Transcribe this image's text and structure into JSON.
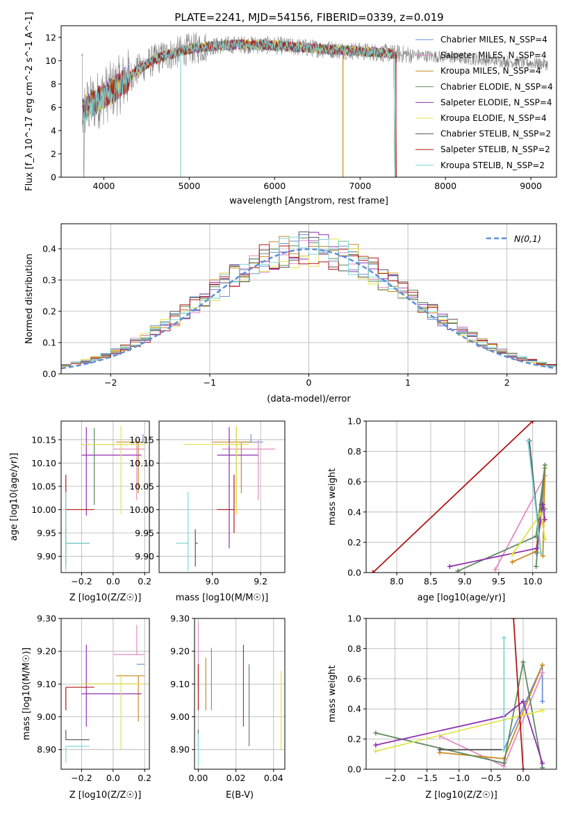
{
  "title": "PLATE=2241, MJD=54156, FIBERID=0339, z=0.019",
  "model_colors": [
    "#6a8fd8",
    "#e48bc2",
    "#c98a1e",
    "#5e8a5e",
    "#8f2fb0",
    "#e2e24a",
    "#555555",
    "#b01515",
    "#7fd6d6"
  ],
  "chart_data": [
    {
      "id": "spectrum",
      "type": "line",
      "xlabel": "wavelength [Angstrom, rest frame]",
      "ylabel": "Flux [f_λ 10^-17 erg cm^-2 s^-1 A^-1]",
      "xlim": [
        3500,
        9300
      ],
      "ylim": [
        0,
        13
      ],
      "xticks": [
        4000,
        5000,
        6000,
        7000,
        8000,
        9000
      ],
      "yticks": [
        0,
        2,
        4,
        6,
        8,
        10,
        12
      ],
      "grid": false,
      "legend_position": "top-right",
      "series": [
        {
          "name": "Chabrier MILES, N_SSP=4",
          "color": "#6a8fd8"
        },
        {
          "name": "Salpeter MILES, N_SSP=4",
          "color": "#e48bc2"
        },
        {
          "name": "Kroupa MILES, N_SSP=4",
          "color": "#c98a1e"
        },
        {
          "name": "Chabrier ELODIE, N_SSP=4",
          "color": "#5e8a5e"
        },
        {
          "name": "Salpeter ELODIE, N_SSP=4",
          "color": "#8f2fb0"
        },
        {
          "name": "Kroupa ELODIE, N_SSP=4",
          "color": "#e2e24a"
        },
        {
          "name": "Chabrier STELIB, N_SSP=2",
          "color": "#555555"
        },
        {
          "name": "Salpeter STELIB, N_SSP=2",
          "color": "#b01515"
        },
        {
          "name": "Kroupa STELIB, N_SSP=2",
          "color": "#7fd6d6"
        }
      ],
      "data_trend": {
        "x": [
          3750,
          3800,
          3900,
          4000,
          4100,
          4200,
          4300,
          4400,
          4500,
          4600,
          4700,
          4800,
          4900,
          5000,
          5100,
          5200,
          5400,
          5600,
          5800,
          6000,
          6200,
          6400,
          6600,
          6800,
          7000,
          7200,
          7400,
          7600,
          7800,
          8000,
          8200,
          8400,
          8600,
          8800,
          9000,
          9200
        ],
        "y": [
          5.5,
          6.0,
          6.5,
          7.0,
          7.5,
          8.0,
          8.6,
          9.2,
          9.7,
          10.1,
          10.4,
          10.6,
          10.8,
          11.0,
          11.1,
          11.2,
          11.3,
          11.4,
          11.35,
          11.3,
          11.2,
          11.1,
          11.0,
          10.9,
          10.8,
          10.7,
          10.6,
          10.5,
          10.4,
          10.3,
          10.2,
          10.1,
          10.0,
          9.9,
          9.8,
          9.7
        ]
      },
      "model_end_wavelengths": [
        7400,
        7400,
        7400,
        7400,
        7400,
        7400,
        7400,
        7420,
        7400
      ],
      "model_start_wavelengths": [
        3750,
        3750,
        3750,
        3750,
        3750,
        3750,
        3750,
        3750,
        3750
      ]
    },
    {
      "id": "residuals",
      "type": "histogram",
      "xlabel": "(data-model)/error",
      "ylabel": "Normed distribution",
      "xlim": [
        -2.5,
        2.5
      ],
      "ylim": [
        0,
        0.48
      ],
      "xticks": [
        -2,
        -1,
        0,
        1,
        2
      ],
      "yticks": [
        0.0,
        0.1,
        0.2,
        0.3,
        0.4
      ],
      "grid": true,
      "legend_position": "top-right",
      "reference_curve": {
        "name": "N(0,1)",
        "color": "#5b8fd9",
        "style": "dashed"
      },
      "bin_width": 0.1,
      "bin_start": -2.5
    },
    {
      "id": "age_vs_Z",
      "type": "errorbar",
      "xlabel": "Z [log10(Z/Z☉)]",
      "ylabel": "age [log10(age/yr)]",
      "xlim": [
        -0.33,
        0.23
      ],
      "ylim": [
        9.865,
        10.19
      ],
      "xticks": [
        -0.2,
        0.0,
        0.2
      ],
      "yticks": [
        9.9,
        9.95,
        10.0,
        10.05,
        10.1,
        10.15
      ],
      "grid": true,
      "points": [
        {
          "x": 0.19,
          "y": 10.145,
          "xerr": [
            0.04,
            0.01
          ],
          "yerr": [
            0.0,
            0.017
          ],
          "color": "#6a8fd8"
        },
        {
          "x": 0.15,
          "y": 10.13,
          "xerr": [
            0.15,
            0.05
          ],
          "yerr": [
            0.11,
            0.02
          ],
          "color": "#e48bc2"
        },
        {
          "x": 0.16,
          "y": 10.145,
          "xerr": [
            0.14,
            0.04
          ],
          "yerr": [
            0.11,
            0.0
          ],
          "color": "#c98a1e"
        },
        {
          "x": -0.12,
          "y": 10.14,
          "xerr": [
            0.08,
            0.27
          ],
          "yerr": [
            0.13,
            0.035
          ],
          "color": "#5e8a5e"
        },
        {
          "x": -0.17,
          "y": 10.117,
          "xerr": [
            0.03,
            0.35
          ],
          "yerr": [
            0.13,
            0.06
          ],
          "color": "#8f2fb0"
        },
        {
          "x": 0.05,
          "y": 10.14,
          "xerr": [
            0.25,
            0.15
          ],
          "yerr": [
            0.15,
            0.04
          ],
          "color": "#e2e24a"
        },
        {
          "x": -0.3,
          "y": 9.928,
          "xerr": [
            0.0,
            0.15
          ],
          "yerr": [
            0.05,
            0.03
          ],
          "color": "#555555"
        },
        {
          "x": -0.3,
          "y": 10.0,
          "xerr": [
            0.0,
            0.18
          ],
          "yerr": [
            0.05,
            0.075
          ],
          "color": "#b01515"
        },
        {
          "x": -0.3,
          "y": 9.928,
          "xerr": [
            0.0,
            0.15
          ],
          "yerr": [
            0.06,
            0.11
          ],
          "color": "#7fd6d6"
        }
      ]
    },
    {
      "id": "age_vs_mass",
      "type": "errorbar",
      "xlabel": "mass [log10(M/M☉)]",
      "ylabel": "",
      "xlim": [
        8.78,
        9.3
      ],
      "ylim": [
        9.865,
        10.19
      ],
      "xticks": [
        9.0,
        9.2
      ],
      "yticks": [
        9.9,
        9.95,
        10.0,
        10.05,
        10.1,
        10.15
      ],
      "grid": true,
      "points": [
        {
          "x": 9.16,
          "y": 10.145,
          "xerr": [
            0.04,
            0.05
          ],
          "yerr": [
            0.0,
            0.017
          ],
          "color": "#6a8fd8"
        },
        {
          "x": 9.19,
          "y": 10.13,
          "xerr": [
            0.15,
            0.07
          ],
          "yerr": [
            0.11,
            0.02
          ],
          "color": "#e48bc2"
        },
        {
          "x": 9.12,
          "y": 10.145,
          "xerr": [
            0.12,
            0.04
          ],
          "yerr": [
            0.11,
            0.0
          ],
          "color": "#c98a1e"
        },
        {
          "x": 9.1,
          "y": 10.14,
          "xerr": [
            0.03,
            0.03
          ],
          "yerr": [
            0.13,
            0.035
          ],
          "color": "#5e8a5e"
        },
        {
          "x": 9.07,
          "y": 10.117,
          "xerr": [
            0.05,
            0.12
          ],
          "yerr": [
            0.2,
            0.06
          ],
          "color": "#8f2fb0"
        },
        {
          "x": 9.1,
          "y": 10.14,
          "xerr": [
            0.22,
            0.05
          ],
          "yerr": [
            0.15,
            0.04
          ],
          "color": "#e2e24a"
        },
        {
          "x": 8.93,
          "y": 9.928,
          "xerr": [
            0.0,
            0.01
          ],
          "yerr": [
            0.05,
            0.03
          ],
          "color": "#555555"
        },
        {
          "x": 9.09,
          "y": 10.0,
          "xerr": [
            0.07,
            0.0
          ],
          "yerr": [
            0.05,
            0.075
          ],
          "color": "#b01515"
        },
        {
          "x": 8.9,
          "y": 9.928,
          "xerr": [
            0.05,
            0.0
          ],
          "yerr": [
            0.06,
            0.11
          ],
          "color": "#7fd6d6"
        }
      ]
    },
    {
      "id": "weight_vs_age",
      "type": "line",
      "xlabel": "age [log10(age/yr)]",
      "ylabel": "mass weight",
      "xlim": [
        7.55,
        10.35
      ],
      "ylim": [
        0,
        1
      ],
      "xticks": [
        8.0,
        8.5,
        9.0,
        9.5,
        10.0
      ],
      "yticks": [
        0.0,
        0.2,
        0.4,
        0.6,
        0.8,
        1.0
      ],
      "grid": true,
      "series": [
        {
          "color": "#6a8fd8",
          "x": [
            10.05,
            10.12,
            10.18
          ],
          "y": [
            0.13,
            0.45,
            0.42
          ]
        },
        {
          "color": "#e48bc2",
          "x": [
            9.45,
            10.18,
            10.12
          ],
          "y": [
            0.02,
            0.64,
            0.33
          ]
        },
        {
          "color": "#c98a1e",
          "x": [
            9.7,
            10.05,
            10.18,
            10.15
          ],
          "y": [
            0.07,
            0.14,
            0.69,
            0.11
          ]
        },
        {
          "color": "#5e8a5e",
          "x": [
            8.9,
            10.05,
            10.18,
            10.05
          ],
          "y": [
            0.01,
            0.24,
            0.71,
            0.04
          ]
        },
        {
          "color": "#8f2fb0",
          "x": [
            8.78,
            10.06,
            10.15,
            10.18
          ],
          "y": [
            0.04,
            0.16,
            0.45,
            0.35
          ]
        },
        {
          "color": "#e2e24a",
          "x": [
            9.7,
            10.12,
            10.18,
            10.15
          ],
          "y": [
            0.12,
            0.39,
            0.22,
            0.31
          ]
        },
        {
          "color": "#555555",
          "x": [
            9.95,
            10.12
          ],
          "y": [
            0.87,
            0.13
          ]
        },
        {
          "color": "#b01515",
          "x": [
            7.65,
            10.0
          ],
          "y": [
            0.0,
            1.0
          ]
        },
        {
          "color": "#7fd6d6",
          "x": [
            9.93,
            10.12
          ],
          "y": [
            0.87,
            0.13
          ]
        }
      ]
    },
    {
      "id": "mass_vs_Z",
      "type": "errorbar",
      "xlabel": "Z [log10(Z/Z☉)]",
      "ylabel": "mass [log10(M/M☉)]",
      "xlim": [
        -0.33,
        0.23
      ],
      "ylim": [
        8.84,
        9.3
      ],
      "xticks": [
        -0.2,
        0.0,
        0.2
      ],
      "yticks": [
        8.9,
        9.0,
        9.1,
        9.2,
        9.3
      ],
      "grid": true,
      "points": [
        {
          "x": 0.19,
          "y": 9.16,
          "xerr": [
            0.04,
            0.01
          ],
          "yerr": [
            0.0,
            0.0
          ],
          "color": "#6a8fd8"
        },
        {
          "x": 0.15,
          "y": 9.19,
          "xerr": [
            0.15,
            0.05
          ],
          "yerr": [
            0.0,
            0.09
          ],
          "color": "#e48bc2"
        },
        {
          "x": 0.16,
          "y": 9.125,
          "xerr": [
            0.14,
            0.04
          ],
          "yerr": [
            0.14,
            0.0
          ],
          "color": "#c98a1e"
        },
        {
          "x": -0.12,
          "y": 9.1,
          "xerr": [
            0.08,
            0.27
          ],
          "yerr": [
            0.0,
            0.0
          ],
          "color": "#5e8a5e"
        },
        {
          "x": -0.17,
          "y": 9.07,
          "xerr": [
            0.03,
            0.35
          ],
          "yerr": [
            0.1,
            0.15
          ],
          "color": "#8f2fb0"
        },
        {
          "x": 0.05,
          "y": 9.1,
          "xerr": [
            0.25,
            0.15
          ],
          "yerr": [
            0.2,
            0.03
          ],
          "color": "#e2e24a"
        },
        {
          "x": -0.3,
          "y": 8.93,
          "xerr": [
            0.0,
            0.15
          ],
          "yerr": [
            0.0,
            0.03
          ],
          "color": "#555555"
        },
        {
          "x": -0.3,
          "y": 9.09,
          "xerr": [
            0.0,
            0.18
          ],
          "yerr": [
            0.07,
            0.0
          ],
          "color": "#b01515"
        },
        {
          "x": -0.3,
          "y": 8.91,
          "xerr": [
            0.0,
            0.15
          ],
          "yerr": [
            0.05,
            0.0
          ],
          "color": "#7fd6d6"
        }
      ]
    },
    {
      "id": "mass_vs_EBV",
      "type": "errorbar",
      "xlabel": "E(B-V)",
      "ylabel": "",
      "xlim": [
        -0.002,
        0.046
      ],
      "ylim": [
        8.84,
        9.3
      ],
      "xticks": [
        0.0,
        0.02,
        0.04
      ],
      "yticks": [
        8.9,
        9.0,
        9.1,
        9.2,
        9.3
      ],
      "grid": true,
      "points": [
        {
          "x": 0.007,
          "y": 9.11,
          "xerr": [
            0,
            0
          ],
          "yerr": [
            0.09,
            0.1
          ],
          "color": "#6a8fd8"
        },
        {
          "x": 0.0,
          "y": 9.19,
          "xerr": [
            0,
            0
          ],
          "yerr": [
            0.11,
            0.1
          ],
          "color": "#e48bc2"
        },
        {
          "x": 0.004,
          "y": 9.1,
          "xerr": [
            0,
            0
          ],
          "yerr": [
            0.08,
            0.08
          ],
          "color": "#c98a1e"
        },
        {
          "x": 0.027,
          "y": 9.03,
          "xerr": [
            0,
            0
          ],
          "yerr": [
            0.12,
            0.13
          ],
          "color": "#5e8a5e"
        },
        {
          "x": 0.024,
          "y": 9.09,
          "xerr": [
            0,
            0
          ],
          "yerr": [
            0.12,
            0.13
          ],
          "color": "#8f2fb0"
        },
        {
          "x": 0.044,
          "y": 9.02,
          "xerr": [
            0,
            0
          ],
          "yerr": [
            0.12,
            0.12
          ],
          "color": "#e2e24a"
        },
        {
          "x": 0.0,
          "y": 8.93,
          "xerr": [
            0,
            0
          ],
          "yerr": [
            0.03,
            0.03
          ],
          "color": "#555555"
        },
        {
          "x": 0.0,
          "y": 9.09,
          "xerr": [
            0,
            0
          ],
          "yerr": [
            0.07,
            0.07
          ],
          "color": "#b01515"
        },
        {
          "x": 0.0,
          "y": 8.9,
          "xerr": [
            0,
            0
          ],
          "yerr": [
            0.05,
            0.05
          ],
          "color": "#7fd6d6"
        }
      ]
    },
    {
      "id": "weight_vs_Z",
      "type": "line",
      "xlabel": "Z [log10(Z/Z☉)]",
      "ylabel": "mass weight",
      "xlim": [
        -2.45,
        0.52
      ],
      "ylim": [
        0,
        1
      ],
      "xticks": [
        -2.0,
        -1.5,
        -1.0,
        -0.5,
        0.0
      ],
      "yticks": [
        0.0,
        0.2,
        0.4,
        0.6,
        0.8,
        1.0
      ],
      "grid": true,
      "series": [
        {
          "color": "#6a8fd8",
          "x": [
            -0.3,
            0.3,
            0.3
          ],
          "y": [
            0.13,
            0.69,
            0.45
          ]
        },
        {
          "color": "#e48bc2",
          "x": [
            -1.3,
            -0.3,
            0.3
          ],
          "y": [
            0.22,
            0.02,
            0.64
          ]
        },
        {
          "color": "#c98a1e",
          "x": [
            -1.3,
            -0.3,
            0.3
          ],
          "y": [
            0.11,
            0.07,
            0.69
          ]
        },
        {
          "color": "#5e8a5e",
          "x": [
            -2.3,
            -0.3,
            0.0,
            0.3
          ],
          "y": [
            0.24,
            0.04,
            0.71,
            0.01
          ]
        },
        {
          "color": "#8f2fb0",
          "x": [
            -2.3,
            -0.3,
            0.0,
            0.3
          ],
          "y": [
            0.16,
            0.35,
            0.45,
            0.04
          ]
        },
        {
          "color": "#e2e24a",
          "x": [
            -2.3,
            0.3
          ],
          "y": [
            0.12,
            0.39
          ]
        },
        {
          "color": "#555555",
          "x": [
            -1.3,
            -0.3
          ],
          "y": [
            0.13,
            0.13
          ]
        },
        {
          "color": "#b01515",
          "x": [
            -0.15,
            0.0
          ],
          "y": [
            1.0,
            0.0
          ]
        },
        {
          "color": "#7fd6d6",
          "x": [
            -0.3,
            -0.3
          ],
          "y": [
            0.87,
            0.13
          ]
        }
      ]
    }
  ]
}
